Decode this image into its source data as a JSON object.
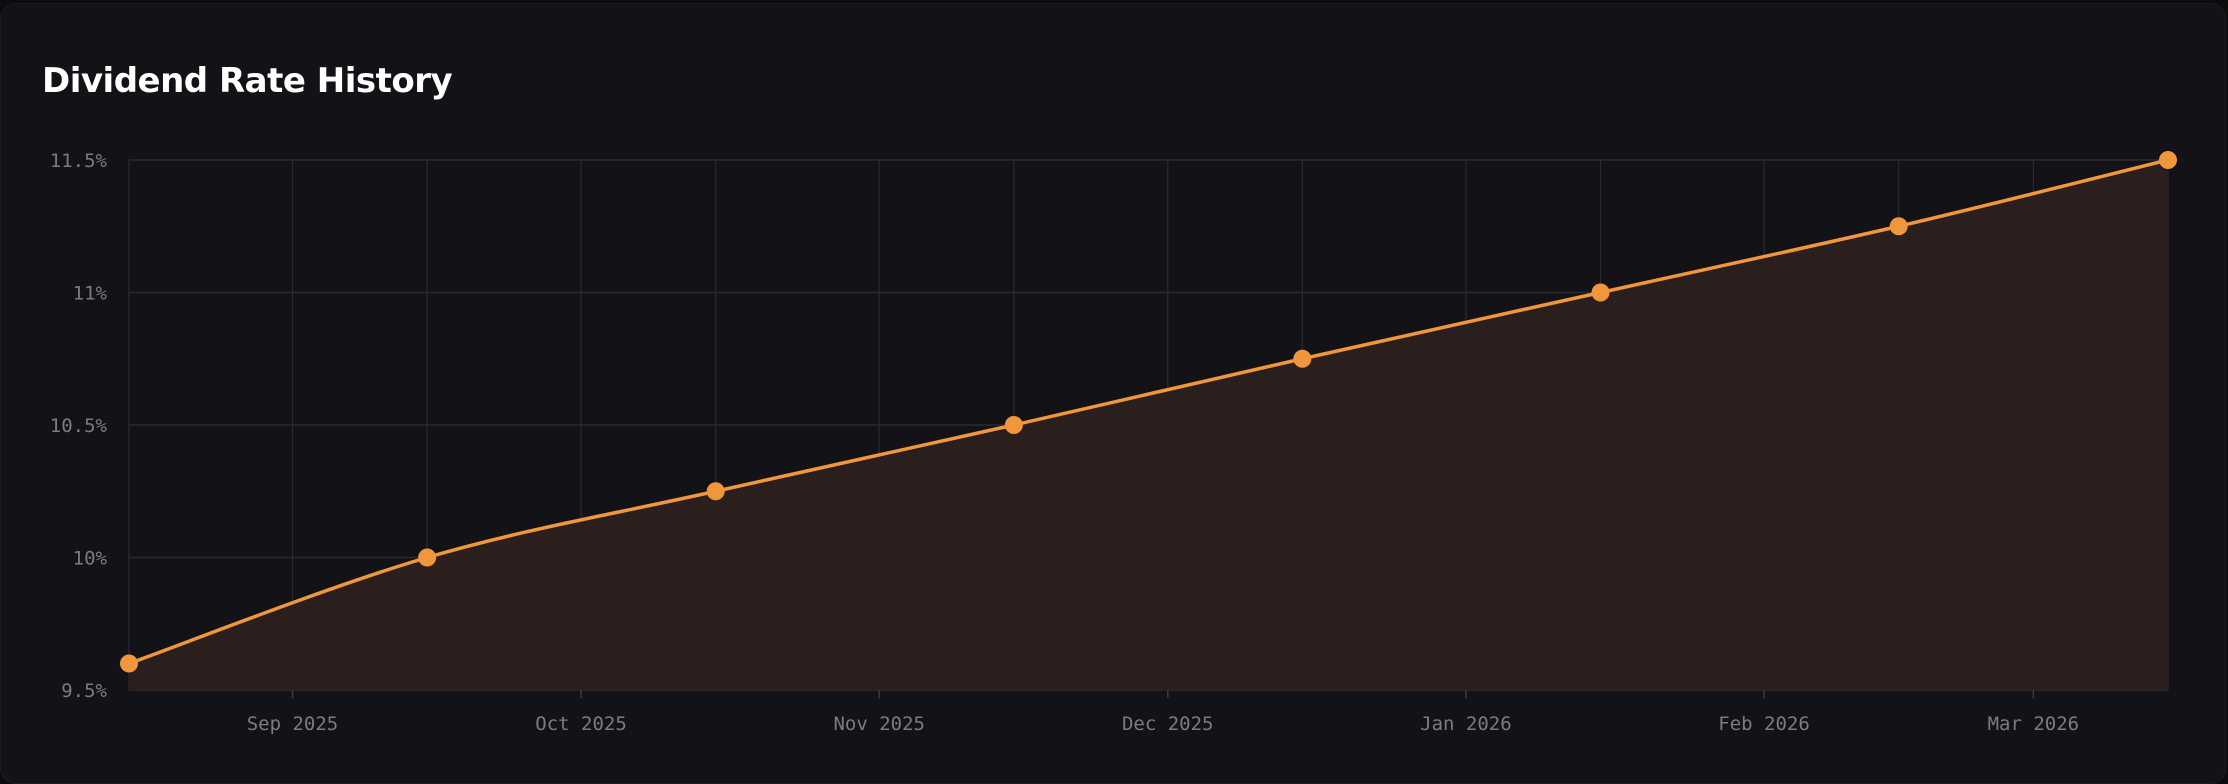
{
  "chart_data": {
    "type": "area",
    "title": "Dividend Rate History",
    "xlabel": "",
    "ylabel": "",
    "x_ticks": [
      "Sep 2025",
      "Oct 2025",
      "Nov 2025",
      "Dec 2025",
      "Jan 2026",
      "Feb 2026",
      "Mar 2026"
    ],
    "y_ticks": [
      "9.5%",
      "10%",
      "10.5%",
      "11%",
      "11.5%"
    ],
    "ylim": [
      9.5,
      11.5
    ],
    "xlim": [
      "2025-08-15",
      "2026-03-15"
    ],
    "grid": true,
    "series": [
      {
        "x": [
          "2025-08-15",
          "2025-09-15",
          "2025-10-15",
          "2025-11-15",
          "2025-12-15",
          "2026-01-15",
          "2026-02-15",
          "2026-03-15"
        ],
        "values": [
          9.6,
          10.0,
          10.25,
          10.5,
          10.75,
          11.0,
          11.25,
          11.5
        ]
      }
    ],
    "colors": {
      "line": "#f0963c",
      "area_fill": "#2a1f1c",
      "grid": "#2a2a30",
      "tick_text": "#7b7b86"
    }
  }
}
